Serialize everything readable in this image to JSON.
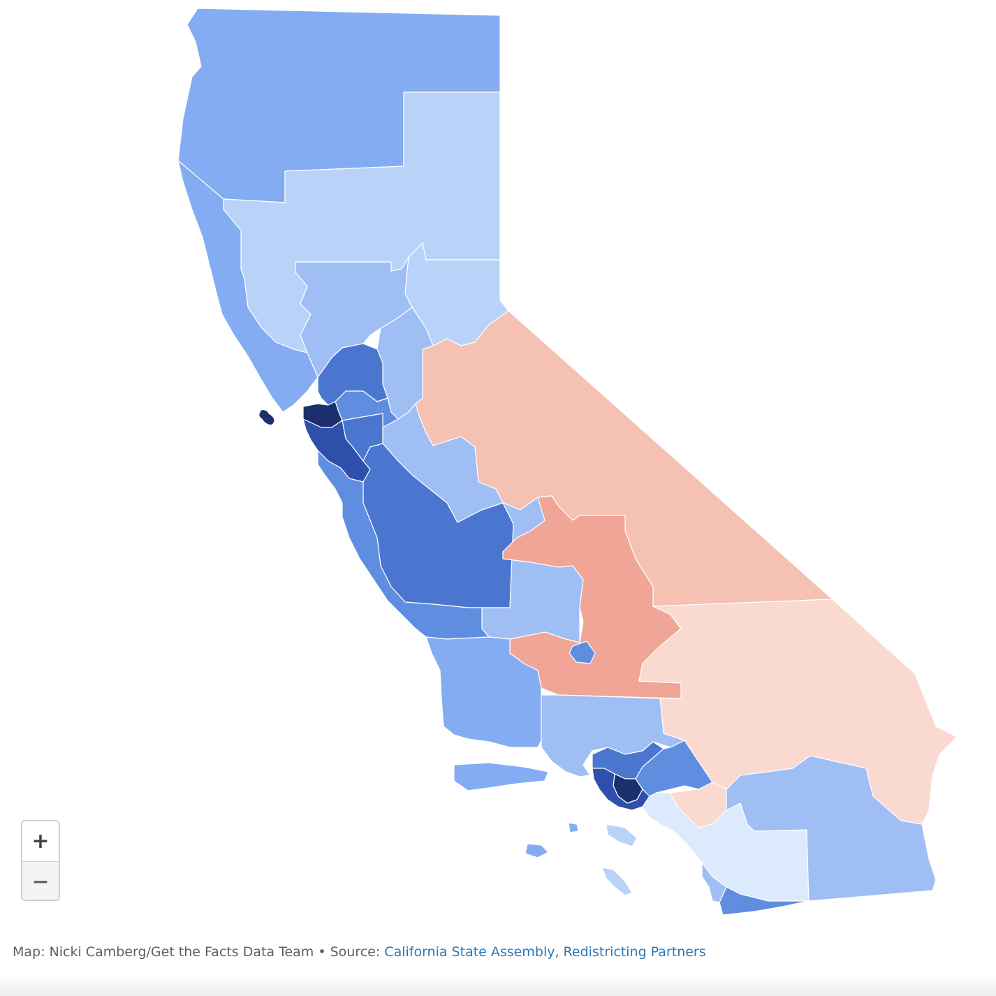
{
  "map": {
    "colors": {
      "dem_darkest": "#1b2f6e",
      "dem_dark": "#2e4faa",
      "dem_strong": "#4b76cf",
      "dem_mid": "#5f8ee0",
      "dem_medium": "#84acf2",
      "dem_light": "#9fbff4",
      "dem_lighter": "#b9d3f8",
      "dem_lightest": "#dbeafc",
      "rep_light": "#f4c1b3",
      "rep_lighter": "#f9d9d0",
      "rep_medium": "#f0a596",
      "border": "#ffffff"
    }
  },
  "zoom": {
    "in_label": "+",
    "out_label": "−"
  },
  "credit": {
    "prefix": "Map: Nicki Camberg/Get the Facts Data Team • Source: ",
    "source_link": "California State Assembly, Redistricting Partners"
  }
}
